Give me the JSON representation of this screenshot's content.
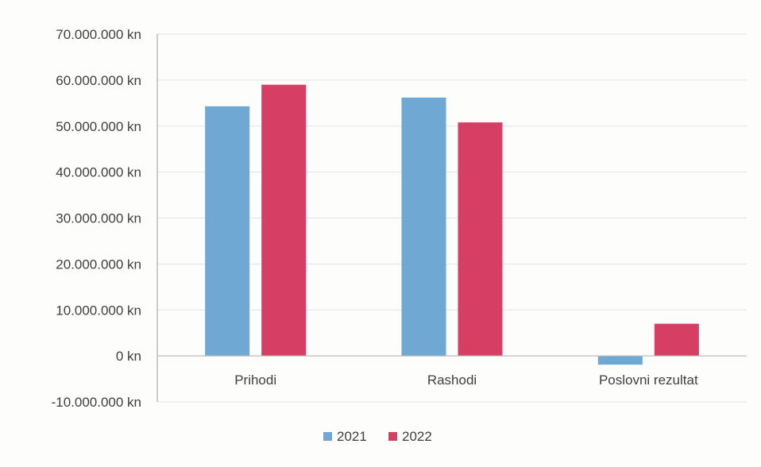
{
  "chart_data": {
    "type": "bar",
    "title": "",
    "xlabel": "",
    "ylabel": "",
    "categories": [
      "Prihodi",
      "Rashodi",
      "Poslovni rezultat"
    ],
    "series": [
      {
        "name": "2021",
        "color": "#6fa8d3",
        "values": [
          54300000,
          56200000,
          -1900000
        ]
      },
      {
        "name": "2022",
        "color": "#d63f63",
        "values": [
          59000000,
          50800000,
          7000000
        ]
      }
    ],
    "ylim": [
      -10000000,
      70000000
    ],
    "ytick_step": 10000000,
    "ytick_labels": [
      "-10.000.000 kn",
      "0 kn",
      "10.000.000 kn",
      "20.000.000 kn",
      "30.000.000 kn",
      "40.000.000 kn",
      "50.000.000 kn",
      "60.000.000 kn",
      "70.000.000 kn"
    ],
    "grid": true,
    "legend": "bottom-center",
    "gridline_color": "#e3e3e3",
    "axis_color": "#bcbcbc"
  }
}
